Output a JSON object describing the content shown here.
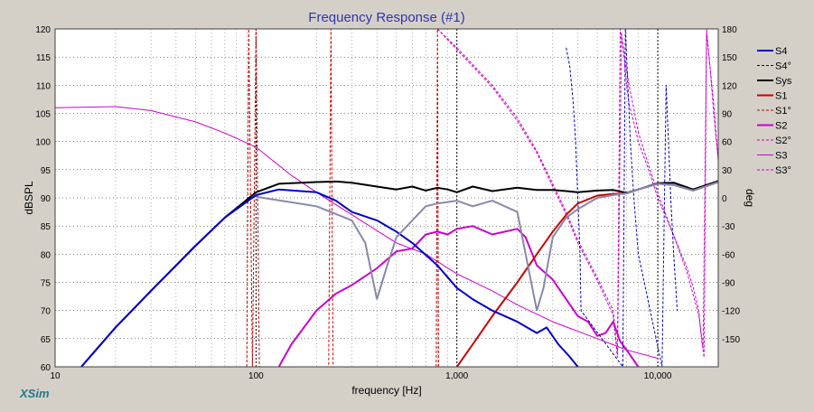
{
  "app": {
    "brand": "XSim"
  },
  "chart_data": {
    "type": "line",
    "title": "Frequency Response (#1)",
    "xlabel": "frequency [Hz]",
    "ylabel": "dBSPL",
    "y2label": "deg",
    "xscale": "log",
    "xlim": [
      10,
      20000
    ],
    "ylim": [
      60,
      120
    ],
    "y2lim": [
      -180,
      180
    ],
    "grid": true,
    "legend_position": "right",
    "x_ticks": [
      {
        "value": 10,
        "label": "10"
      },
      {
        "value": 100,
        "label": "100"
      },
      {
        "value": 1000,
        "label": "1,000"
      },
      {
        "value": 10000,
        "label": "10,000"
      }
    ],
    "y_ticks": [
      "60",
      "65",
      "70",
      "75",
      "80",
      "85",
      "90",
      "95",
      "100",
      "105",
      "110",
      "115",
      "120"
    ],
    "y2_ticks": [
      "-150",
      "-120",
      "-90",
      "-60",
      "-30",
      "0",
      "30",
      "60",
      "90",
      "120",
      "150",
      "180"
    ],
    "series": [
      {
        "name": "S4",
        "axis": "left",
        "color": "#0000c8",
        "style": "solid",
        "width": 2,
        "x": [
          13.5,
          20,
          30,
          50,
          70,
          100,
          130,
          200,
          250,
          300,
          400,
          500,
          600,
          800,
          1000,
          1200,
          1500,
          2000,
          2500,
          2800,
          3200,
          3600,
          4000
        ],
        "y": [
          60,
          67,
          73.5,
          81.5,
          86.5,
          90.5,
          91.5,
          91,
          89.5,
          87.5,
          86,
          84,
          82,
          78,
          74,
          72,
          70,
          68,
          66,
          67,
          64,
          62,
          60
        ]
      },
      {
        "name": "S4°",
        "axis": "right",
        "color": "#0000c8",
        "style": "dashed",
        "width": 1,
        "x": [
          3500,
          3650,
          3800,
          3900,
          4000,
          4100,
          4150,
          6700,
          6900,
          7100,
          7300,
          7600,
          8000,
          10500,
          11000,
          11300,
          11600,
          12000,
          12500
        ],
        "y": [
          160,
          140,
          100,
          60,
          0,
          -60,
          -120,
          -180,
          180,
          120,
          60,
          0,
          -60,
          -180,
          120,
          60,
          0,
          -60,
          -120
        ]
      },
      {
        "name": "Sys",
        "axis": "left",
        "color": "#000000",
        "style": "solid",
        "width": 2,
        "x": [
          13.5,
          20,
          30,
          50,
          70,
          100,
          130,
          200,
          250,
          300,
          400,
          500,
          600,
          700,
          800,
          900,
          1000,
          1200,
          1500,
          2000,
          2500,
          3000,
          3500,
          4000,
          5000,
          6000,
          7000,
          8000,
          10000,
          12000,
          15000,
          20000
        ],
        "y": [
          60,
          67,
          73.5,
          81.5,
          86.5,
          91,
          92.5,
          92.8,
          92.9,
          92.7,
          92,
          91.5,
          92,
          91.3,
          91.8,
          91.5,
          91,
          92,
          91.2,
          91.8,
          91.4,
          91.4,
          91.2,
          91,
          91.3,
          91.4,
          90.9,
          91.5,
          92.6,
          92.7,
          91.5,
          93
        ]
      },
      {
        "name": "S1",
        "axis": "left",
        "color": "#cc0000",
        "style": "solid",
        "width": 2,
        "x": [
          1000,
          1200,
          1500,
          2000,
          2500,
          3000,
          3500,
          4000,
          5000,
          6000,
          7000,
          8000,
          10000,
          12000,
          15000,
          20000
        ],
        "y": [
          60,
          64,
          69,
          75,
          80,
          84,
          87,
          89,
          90.4,
          90.7,
          90.8,
          91.5,
          92.5,
          92.3,
          91.3,
          92.8
        ]
      },
      {
        "name": "S1°",
        "axis": "right",
        "color": "#cc0000",
        "style": "dashed",
        "width": 1,
        "x": [
          90,
          92,
          96,
          100,
          104,
          230,
          236,
          242,
          790,
          800,
          810
        ],
        "y": [
          -180,
          180,
          -180,
          180,
          -180,
          -180,
          180,
          -180,
          -180,
          180,
          -180
        ]
      },
      {
        "name": "S2",
        "axis": "left",
        "color": "#cc00cc",
        "style": "solid",
        "width": 2,
        "x": [
          130,
          150,
          200,
          250,
          300,
          400,
          500,
          600,
          700,
          800,
          900,
          1000,
          1200,
          1500,
          2000,
          2200,
          2500,
          3000,
          3500,
          4000,
          4500,
          5000,
          5500,
          6000,
          6500,
          7000,
          8000
        ],
        "y": [
          60,
          64,
          70,
          73,
          74.5,
          77.5,
          80.5,
          81,
          83.5,
          84,
          83.5,
          84.5,
          85,
          83.5,
          84.5,
          83,
          78,
          75.5,
          72,
          69,
          68,
          65.5,
          66,
          68,
          64.5,
          63,
          60
        ]
      },
      {
        "name": "S2°",
        "axis": "right",
        "color": "#cc00cc",
        "style": "dashed",
        "width": 1,
        "x": [
          800,
          1000,
          1500,
          2000,
          2500,
          3000,
          3500,
          4000,
          5000,
          6000,
          6300,
          6500,
          6800,
          7000,
          7200,
          7600,
          8000,
          9000,
          10000,
          12000,
          14000,
          15000,
          16000,
          16500,
          17000,
          17500,
          18000,
          19000,
          20000
        ],
        "y": [
          180,
          160,
          120,
          85,
          50,
          15,
          -15,
          -45,
          -85,
          -120,
          -165,
          180,
          150,
          120,
          100,
          80,
          60,
          30,
          0,
          -40,
          -75,
          -95,
          -120,
          -150,
          -170,
          180,
          150,
          100,
          40
        ]
      },
      {
        "name": "S3",
        "axis": "left",
        "color": "#cc00cc",
        "style": "solid",
        "width": 1,
        "x": [
          10,
          20,
          30,
          50,
          70,
          100,
          150,
          200,
          300,
          500,
          700,
          1000,
          1500,
          2000,
          3000,
          5000,
          7000,
          10000
        ],
        "y": [
          106,
          106.2,
          105.5,
          103.5,
          101.5,
          99,
          94,
          91,
          87,
          82,
          80,
          76.5,
          73.5,
          71,
          68,
          65,
          63,
          61.5
        ]
      },
      {
        "name": "S3°",
        "axis": "right",
        "color": "#cc00cc",
        "style": "dashed",
        "width": 1,
        "x": [
          800,
          1000,
          1500,
          2000,
          2500,
          3000,
          3500,
          4000,
          5000,
          6000,
          6300,
          6600,
          6900,
          7200,
          7600,
          8000,
          9000,
          10000,
          12000,
          14000,
          16000,
          16800,
          17500,
          18200,
          19000,
          20000
        ],
        "y": [
          180,
          158,
          118,
          82,
          48,
          12,
          -18,
          -48,
          -88,
          -125,
          -170,
          175,
          145,
          120,
          95,
          70,
          35,
          5,
          -40,
          -80,
          -125,
          -160,
          175,
          140,
          90,
          40
        ]
      }
    ]
  }
}
